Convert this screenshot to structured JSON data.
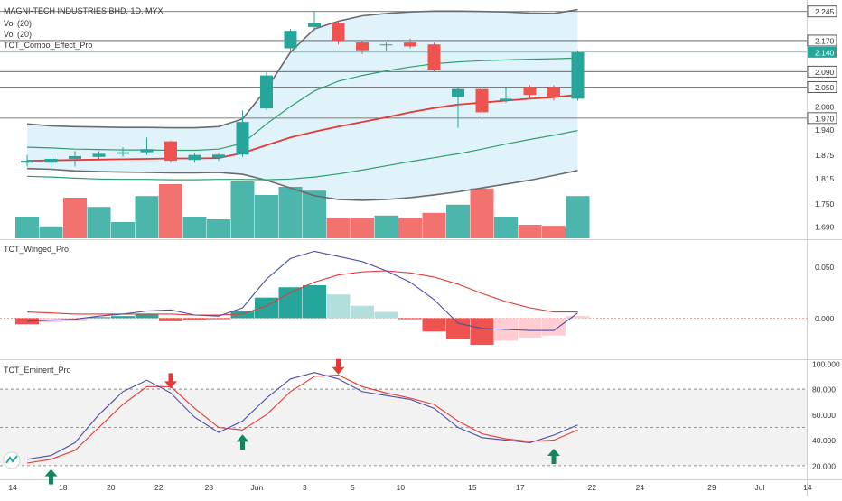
{
  "header": {
    "title": "MAGNI-TECH INDUSTRIES BHD, 1D, MYX",
    "indicator_1": "Vol (20)",
    "indicator_2": "Vol (20)",
    "indicator_3": "TCT_Combo_Effect_Pro"
  },
  "pane_titles": {
    "winged": "TCT_Winged_Pro",
    "eminent": "TCT_Eminent_Pro"
  },
  "colors": {
    "bull": "#26a69a",
    "bear": "#ef5350",
    "bull_light": "#b2dfdb",
    "bear_light": "#ffcdd2",
    "band_fill": "#d6eff8",
    "band_line": "#6b6b6b",
    "mid_line": "#2e9e6e",
    "red_line": "#e53935",
    "blue_line": "#4a4ea8",
    "price_label": "#26a69a"
  },
  "chart_data": [
    {
      "type": "candlestick",
      "title": "MAGNI-TECH INDUSTRIES BHD, 1D, MYX",
      "ylim": [
        1.66,
        2.27
      ],
      "y_ticks": [
        "2.245",
        "2.170",
        "2.140",
        "2.090",
        "2.050",
        "2.000",
        "1.970",
        "1.940",
        "1.875",
        "1.815",
        "1.750",
        "1.690"
      ],
      "horizontal_levels": [
        2.245,
        2.17,
        2.09,
        2.05,
        1.97
      ],
      "last_price": "2.140",
      "candles": [
        {
          "o": 1.855,
          "h": 1.875,
          "l": 1.845,
          "c": 1.86
        },
        {
          "o": 1.855,
          "h": 1.87,
          "l": 1.845,
          "c": 1.865
        },
        {
          "o": 1.865,
          "h": 1.885,
          "l": 1.845,
          "c": 1.872
        },
        {
          "o": 1.87,
          "h": 1.885,
          "l": 1.86,
          "c": 1.878
        },
        {
          "o": 1.878,
          "h": 1.895,
          "l": 1.87,
          "c": 1.882
        },
        {
          "o": 1.882,
          "h": 1.92,
          "l": 1.875,
          "c": 1.89
        },
        {
          "o": 1.91,
          "h": 1.912,
          "l": 1.855,
          "c": 1.86
        },
        {
          "o": 1.862,
          "h": 1.88,
          "l": 1.855,
          "c": 1.875
        },
        {
          "o": 1.868,
          "h": 1.88,
          "l": 1.86,
          "c": 1.876
        },
        {
          "o": 1.876,
          "h": 1.99,
          "l": 1.87,
          "c": 1.96
        },
        {
          "o": 1.995,
          "h": 2.09,
          "l": 1.99,
          "c": 2.08
        },
        {
          "o": 2.15,
          "h": 2.2,
          "l": 2.145,
          "c": 2.195
        },
        {
          "o": 2.205,
          "h": 2.245,
          "l": 2.195,
          "c": 2.215
        },
        {
          "o": 2.215,
          "h": 2.22,
          "l": 2.16,
          "c": 2.17
        },
        {
          "o": 2.165,
          "h": 2.17,
          "l": 2.135,
          "c": 2.145
        },
        {
          "o": 2.16,
          "h": 2.165,
          "l": 2.145,
          "c": 2.16
        },
        {
          "o": 2.165,
          "h": 2.175,
          "l": 2.15,
          "c": 2.155
        },
        {
          "o": 2.16,
          "h": 2.165,
          "l": 2.09,
          "c": 2.095
        },
        {
          "o": 2.025,
          "h": 2.05,
          "l": 1.945,
          "c": 2.045
        },
        {
          "o": 2.045,
          "h": 2.05,
          "l": 1.965,
          "c": 1.985
        },
        {
          "o": 2.015,
          "h": 2.05,
          "l": 2.01,
          "c": 2.02
        },
        {
          "o": 2.05,
          "h": 2.055,
          "l": 2.02,
          "c": 2.03
        },
        {
          "o": 2.05,
          "h": 2.055,
          "l": 2.015,
          "c": 2.025
        },
        {
          "o": 2.02,
          "h": 2.145,
          "l": 2.015,
          "c": 2.14
        }
      ],
      "bands": {
        "upper": [
          1.955,
          1.95,
          1.948,
          1.947,
          1.946,
          1.946,
          1.945,
          1.945,
          1.948,
          1.968,
          2.045,
          2.14,
          2.2,
          2.22,
          2.234,
          2.24,
          2.244,
          2.246,
          2.246,
          2.245,
          2.244,
          2.241,
          2.24,
          2.25
        ],
        "middle": [
          1.895,
          1.893,
          1.89,
          1.889,
          1.888,
          1.888,
          1.887,
          1.887,
          1.89,
          1.905,
          1.955,
          2.0,
          2.04,
          2.065,
          2.08,
          2.092,
          2.102,
          2.11,
          2.115,
          2.118,
          2.12,
          2.122,
          2.123,
          2.125
        ],
        "lower": [
          1.84,
          1.838,
          1.834,
          1.832,
          1.831,
          1.83,
          1.829,
          1.829,
          1.83,
          1.825,
          1.81,
          1.79,
          1.77,
          1.76,
          1.758,
          1.76,
          1.765,
          1.772,
          1.78,
          1.79,
          1.8,
          1.81,
          1.822,
          1.835
        ]
      },
      "red_line": [
        1.86,
        1.861,
        1.862,
        1.863,
        1.864,
        1.865,
        1.866,
        1.866,
        1.867,
        1.88,
        1.9,
        1.92,
        1.935,
        1.948,
        1.96,
        1.972,
        1.985,
        1.996,
        2.005,
        2.01,
        2.015,
        2.02,
        2.024,
        2.03
      ],
      "green_lower_line": [
        1.82,
        1.818,
        1.815,
        1.813,
        1.812,
        1.812,
        1.811,
        1.811,
        1.812,
        1.812,
        1.811,
        1.813,
        1.818,
        1.826,
        1.836,
        1.847,
        1.858,
        1.868,
        1.878,
        1.89,
        1.903,
        1.915,
        1.926,
        1.938
      ],
      "volume": [
        {
          "v": 0.4,
          "dir": "bull"
        },
        {
          "v": 0.22,
          "dir": "bull"
        },
        {
          "v": 0.75,
          "dir": "bear"
        },
        {
          "v": 0.58,
          "dir": "bull"
        },
        {
          "v": 0.3,
          "dir": "bull"
        },
        {
          "v": 0.78,
          "dir": "bull"
        },
        {
          "v": 1.0,
          "dir": "bear"
        },
        {
          "v": 0.4,
          "dir": "bull"
        },
        {
          "v": 0.35,
          "dir": "bull"
        },
        {
          "v": 1.05,
          "dir": "bull"
        },
        {
          "v": 0.8,
          "dir": "bull"
        },
        {
          "v": 0.95,
          "dir": "bull"
        },
        {
          "v": 0.88,
          "dir": "bull"
        },
        {
          "v": 0.37,
          "dir": "bear"
        },
        {
          "v": 0.38,
          "dir": "bear"
        },
        {
          "v": 0.42,
          "dir": "bull"
        },
        {
          "v": 0.38,
          "dir": "bear"
        },
        {
          "v": 0.47,
          "dir": "bear"
        },
        {
          "v": 0.62,
          "dir": "bull"
        },
        {
          "v": 0.92,
          "dir": "bear"
        },
        {
          "v": 0.4,
          "dir": "bull"
        },
        {
          "v": 0.25,
          "dir": "bear"
        },
        {
          "v": 0.23,
          "dir": "bear"
        },
        {
          "v": 0.78,
          "dir": "bull"
        }
      ]
    },
    {
      "type": "histogram",
      "title": "TCT_Winged_Pro",
      "ylim": [
        -0.04,
        0.075
      ],
      "y_ticks": [
        "0.050",
        "0.000"
      ],
      "histogram": [
        {
          "v": -0.006,
          "c": "bear"
        },
        {
          "v": -0.004,
          "c": "bear_light"
        },
        {
          "v": -0.003,
          "c": "bear_light"
        },
        {
          "v": 0.001,
          "c": "bull"
        },
        {
          "v": 0.002,
          "c": "bull"
        },
        {
          "v": 0.004,
          "c": "bull"
        },
        {
          "v": -0.003,
          "c": "bear"
        },
        {
          "v": -0.002,
          "c": "bear"
        },
        {
          "v": -0.001,
          "c": "bear"
        },
        {
          "v": 0.007,
          "c": "bull"
        },
        {
          "v": 0.02,
          "c": "bull"
        },
        {
          "v": 0.03,
          "c": "bull"
        },
        {
          "v": 0.032,
          "c": "bull"
        },
        {
          "v": 0.023,
          "c": "bull_light"
        },
        {
          "v": 0.012,
          "c": "bull_light"
        },
        {
          "v": 0.006,
          "c": "bull_light"
        },
        {
          "v": -0.001,
          "c": "bear"
        },
        {
          "v": -0.013,
          "c": "bear"
        },
        {
          "v": -0.02,
          "c": "bear"
        },
        {
          "v": -0.026,
          "c": "bear"
        },
        {
          "v": -0.022,
          "c": "bear_light"
        },
        {
          "v": -0.019,
          "c": "bear_light"
        },
        {
          "v": -0.017,
          "c": "bear_light"
        },
        {
          "v": 0.002,
          "c": "bear_light"
        }
      ],
      "blue_line": [
        -0.003,
        -0.002,
        -0.001,
        0.002,
        0.004,
        0.007,
        0.008,
        0.003,
        0.002,
        0.01,
        0.038,
        0.058,
        0.065,
        0.06,
        0.055,
        0.046,
        0.035,
        0.018,
        -0.005,
        -0.01,
        -0.011,
        -0.012,
        -0.012,
        0.005
      ],
      "red_line": [
        0.006,
        0.005,
        0.004,
        0.004,
        0.004,
        0.004,
        0.004,
        0.003,
        0.003,
        0.004,
        0.012,
        0.025,
        0.035,
        0.042,
        0.045,
        0.046,
        0.044,
        0.04,
        0.033,
        0.024,
        0.016,
        0.01,
        0.006,
        0.006
      ]
    },
    {
      "type": "line",
      "title": "TCT_Eminent_Pro",
      "ylim": [
        10,
        102
      ],
      "y_ticks": [
        "100.000",
        "80.000",
        "60.000",
        "40.000",
        "20.000"
      ],
      "dashed_levels": [
        80,
        50,
        20
      ],
      "blue_line": [
        25,
        28,
        38,
        60,
        78,
        87,
        77,
        58,
        46,
        55,
        73,
        88,
        93,
        88,
        78,
        75,
        72,
        65,
        50,
        42,
        40,
        38,
        44,
        52
      ],
      "red_line": [
        22,
        25,
        32,
        50,
        68,
        82,
        82,
        65,
        50,
        48,
        60,
        78,
        90,
        91,
        82,
        77,
        73,
        68,
        55,
        45,
        41,
        39,
        40,
        48
      ],
      "buy_signals": [
        1,
        9,
        22
      ],
      "sell_signals": [
        6,
        13
      ],
      "x_ticks": [
        {
          "label": "14",
          "i": -0.6
        },
        {
          "label": "18",
          "i": 1.5
        },
        {
          "label": "20",
          "i": 3.5
        },
        {
          "label": "22",
          "i": 5.5
        },
        {
          "label": "28",
          "i": 7.6
        },
        {
          "label": "Jun",
          "i": 9.6
        },
        {
          "label": "3",
          "i": 11.6
        },
        {
          "label": "5",
          "i": 13.6
        },
        {
          "label": "10",
          "i": 15.6
        },
        {
          "label": "15",
          "i": 18.6
        },
        {
          "label": "17",
          "i": 20.6
        },
        {
          "label": "22",
          "i": 23.6
        },
        {
          "label": "24",
          "i": 25.6
        },
        {
          "label": "29",
          "i": 28.6
        },
        {
          "label": "Jul",
          "i": 30.6
        },
        {
          "label": "14",
          "i": 32.6
        }
      ]
    }
  ]
}
